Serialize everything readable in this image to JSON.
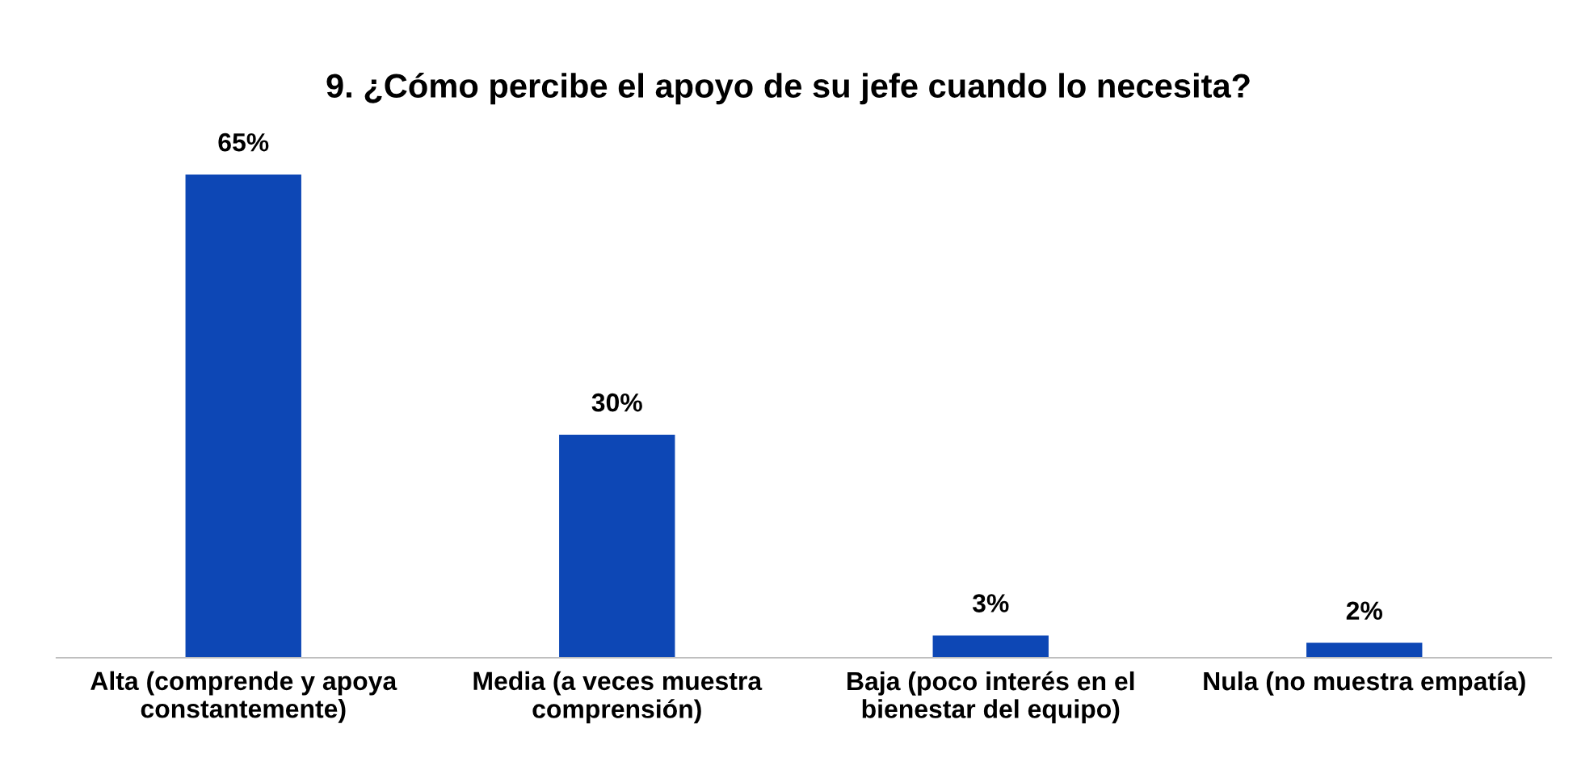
{
  "chart_data": {
    "type": "bar",
    "title": "9. ¿Cómo percibe el apoyo de su jefe cuando lo necesita?",
    "categories": [
      "Alta (comprende y apoya\nconstantemente)",
      "Media (a veces muestra\ncomprensión)",
      "Baja (poco interés en el\nbienestar del equipo)",
      "Nula (no muestra empatía)"
    ],
    "values": [
      65,
      30,
      3,
      2
    ],
    "value_labels": [
      "65%",
      "30%",
      "3%",
      "2%"
    ],
    "color": "#0d47b5",
    "grid": false,
    "legend": false
  }
}
